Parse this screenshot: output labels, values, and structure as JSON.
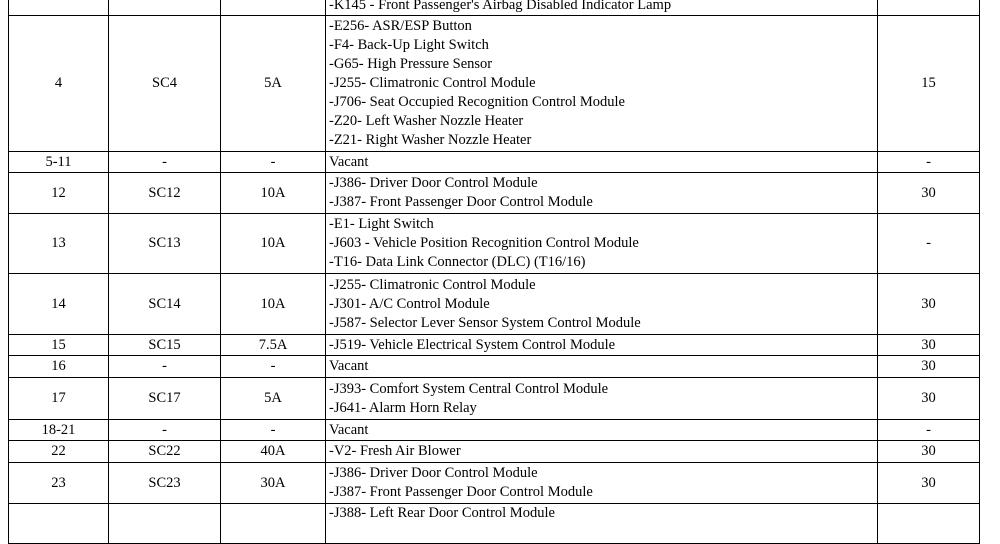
{
  "rows": [
    {
      "no": "",
      "fuse": "",
      "amp": "",
      "items": [
        "-K145 - Front Passenger's Airbag Disabled Indicator Lamp"
      ],
      "terminal": "",
      "h": 21
    },
    {
      "no": "4",
      "fuse": "SC4",
      "amp": "5A",
      "items": [
        "-E256- ASR/ESP Button",
        "-F4- Back-Up Light Switch",
        "-G65- High Pressure Sensor",
        "-J255- Climatronic Control Module",
        "-J706- Seat Occupied Recognition Control Module",
        "-Z20- Left Washer Nozzle Heater",
        "-Z21- Right Washer Nozzle Heater"
      ],
      "terminal": "15",
      "h": 136
    },
    {
      "no": "5-11",
      "fuse": "-",
      "amp": "-",
      "items": [
        "Vacant"
      ],
      "terminal": "-",
      "h": 21
    },
    {
      "no": "12",
      "fuse": "SC12",
      "amp": "10A",
      "items": [
        "-J386- Driver Door Control Module",
        "-J387- Front Passenger Door Control Module"
      ],
      "terminal": "30",
      "h": 41
    },
    {
      "no": "13",
      "fuse": "SC13",
      "amp": "10A",
      "items": [
        "-E1- Light Switch",
        "-J603 - Vehicle Position Recognition Control Module",
        "-T16- Data Link Connector (DLC) (T16/16)"
      ],
      "terminal": "-",
      "h": 60
    },
    {
      "no": "14",
      "fuse": "SC14",
      "amp": "10A",
      "items": [
        "-J255- Climatronic Control Module",
        "-J301- A/C Control Module",
        "-J587- Selector Lever Sensor System Control Module"
      ],
      "terminal": "30",
      "h": 61
    },
    {
      "no": "15",
      "fuse": "SC15",
      "amp": "7.5A",
      "items": [
        "-J519- Vehicle Electrical System Control Module"
      ],
      "terminal": "30",
      "h": 21
    },
    {
      "no": "16",
      "fuse": "-",
      "amp": "-",
      "items": [
        "Vacant"
      ],
      "terminal": "30",
      "h": 22
    },
    {
      "no": "17",
      "fuse": "SC17",
      "amp": "5A",
      "items": [
        "-J393- Comfort System Central Control Module",
        "-J641- Alarm Horn Relay"
      ],
      "terminal": "30",
      "h": 42
    },
    {
      "no": "18-21",
      "fuse": "-",
      "amp": "-",
      "items": [
        "Vacant"
      ],
      "terminal": "-",
      "h": 21
    },
    {
      "no": "22",
      "fuse": "SC22",
      "amp": "40A",
      "items": [
        "-V2- Fresh Air Blower"
      ],
      "terminal": "30",
      "h": 22
    },
    {
      "no": "23",
      "fuse": "SC23",
      "amp": "30A",
      "items": [
        "-J386- Driver Door Control Module",
        "-J387- Front Passenger Door Control Module"
      ],
      "terminal": "30",
      "h": 41
    },
    {
      "no": "",
      "fuse": "",
      "amp": "",
      "items": [
        "-J388- Left Rear Door Control Module"
      ],
      "terminal": "",
      "h": 40
    }
  ]
}
